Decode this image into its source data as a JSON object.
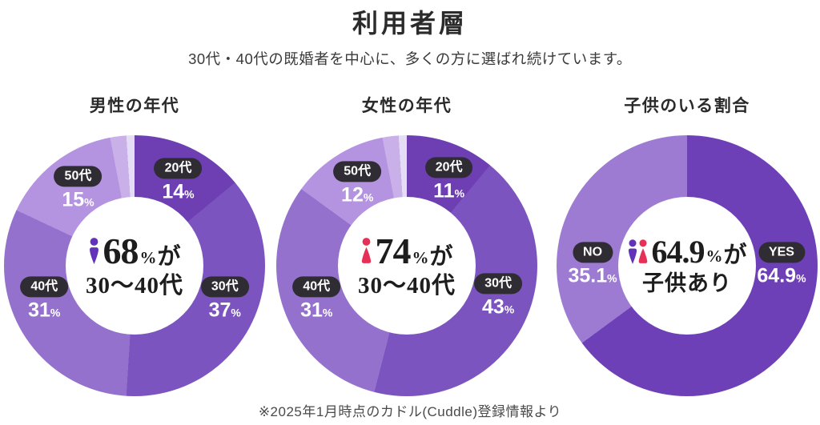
{
  "header": {
    "title": "利用者層",
    "subtitle": "30代・40代の既婚者を中心に、多くの方に選ばれ続けています。"
  },
  "colors": {
    "male_icon": "#6233B8",
    "female_icon": "#E73058",
    "label_pill_bg": "#2F2D33",
    "label_text": "#FFFFFF"
  },
  "chart_data": [
    {
      "type": "pie",
      "style": "donut",
      "title": "男性の年代",
      "legend_position": "on-slice",
      "segments": [
        {
          "label": "20代",
          "value": 14,
          "color": "#6D3FB3",
          "show_label": true,
          "label_angle_deg": 27
        },
        {
          "label": "30代",
          "value": 37,
          "color": "#7C54C0",
          "show_label": true,
          "label_angle_deg": 110
        },
        {
          "label": "40代",
          "value": 31,
          "color": "#9571CE",
          "show_label": true,
          "label_angle_deg": 250
        },
        {
          "label": "50代",
          "value": 15,
          "color": "#B493E1",
          "show_label": true,
          "label_angle_deg": 324
        },
        {
          "label": "",
          "value": 2,
          "color": "#C9B0E9",
          "show_label": false
        },
        {
          "label": "",
          "value": 1,
          "color": "#E5DCF6",
          "show_label": false
        }
      ],
      "center": {
        "icons": [
          "male"
        ],
        "number": "68",
        "unit": "%",
        "suffix": "が",
        "line2": "30〜40代"
      },
      "label_radius_px": 120
    },
    {
      "type": "pie",
      "style": "donut",
      "title": "女性の年代",
      "legend_position": "on-slice",
      "segments": [
        {
          "label": "20代",
          "value": 11,
          "color": "#6D3FB3",
          "show_label": true,
          "label_angle_deg": 26
        },
        {
          "label": "30代",
          "value": 43,
          "color": "#7C54C0",
          "show_label": true,
          "label_angle_deg": 108
        },
        {
          "label": "40代",
          "value": 31,
          "color": "#9571CE",
          "show_label": true,
          "label_angle_deg": 250
        },
        {
          "label": "50代",
          "value": 12,
          "color": "#B493E1",
          "show_label": true,
          "label_angle_deg": 329
        },
        {
          "label": "",
          "value": 2,
          "color": "#C9B0E9",
          "show_label": false
        },
        {
          "label": "",
          "value": 1,
          "color": "#E5DCF6",
          "show_label": false
        }
      ],
      "center": {
        "icons": [
          "female"
        ],
        "number": "74",
        "unit": "%",
        "suffix": "が",
        "line2": "30〜40代"
      },
      "label_radius_px": 120
    },
    {
      "type": "pie",
      "style": "donut",
      "title": "子供のいる割合",
      "legend_position": "on-slice",
      "segments": [
        {
          "label": "YES",
          "value": 64.9,
          "color": "#6E40B8",
          "show_label": true,
          "label_angle_deg": 89
        },
        {
          "label": "NO",
          "value": 35.1,
          "color": "#9E7BD3",
          "show_label": true,
          "label_angle_deg": 271
        }
      ],
      "center": {
        "icons": [
          "male",
          "female"
        ],
        "number": "64.9",
        "unit": "%",
        "suffix": "が",
        "line2": "子供あり"
      },
      "label_radius_px": 118
    }
  ],
  "footer": {
    "note": "※2025年1月時点のカドル(Cuddle)登録情報より"
  }
}
